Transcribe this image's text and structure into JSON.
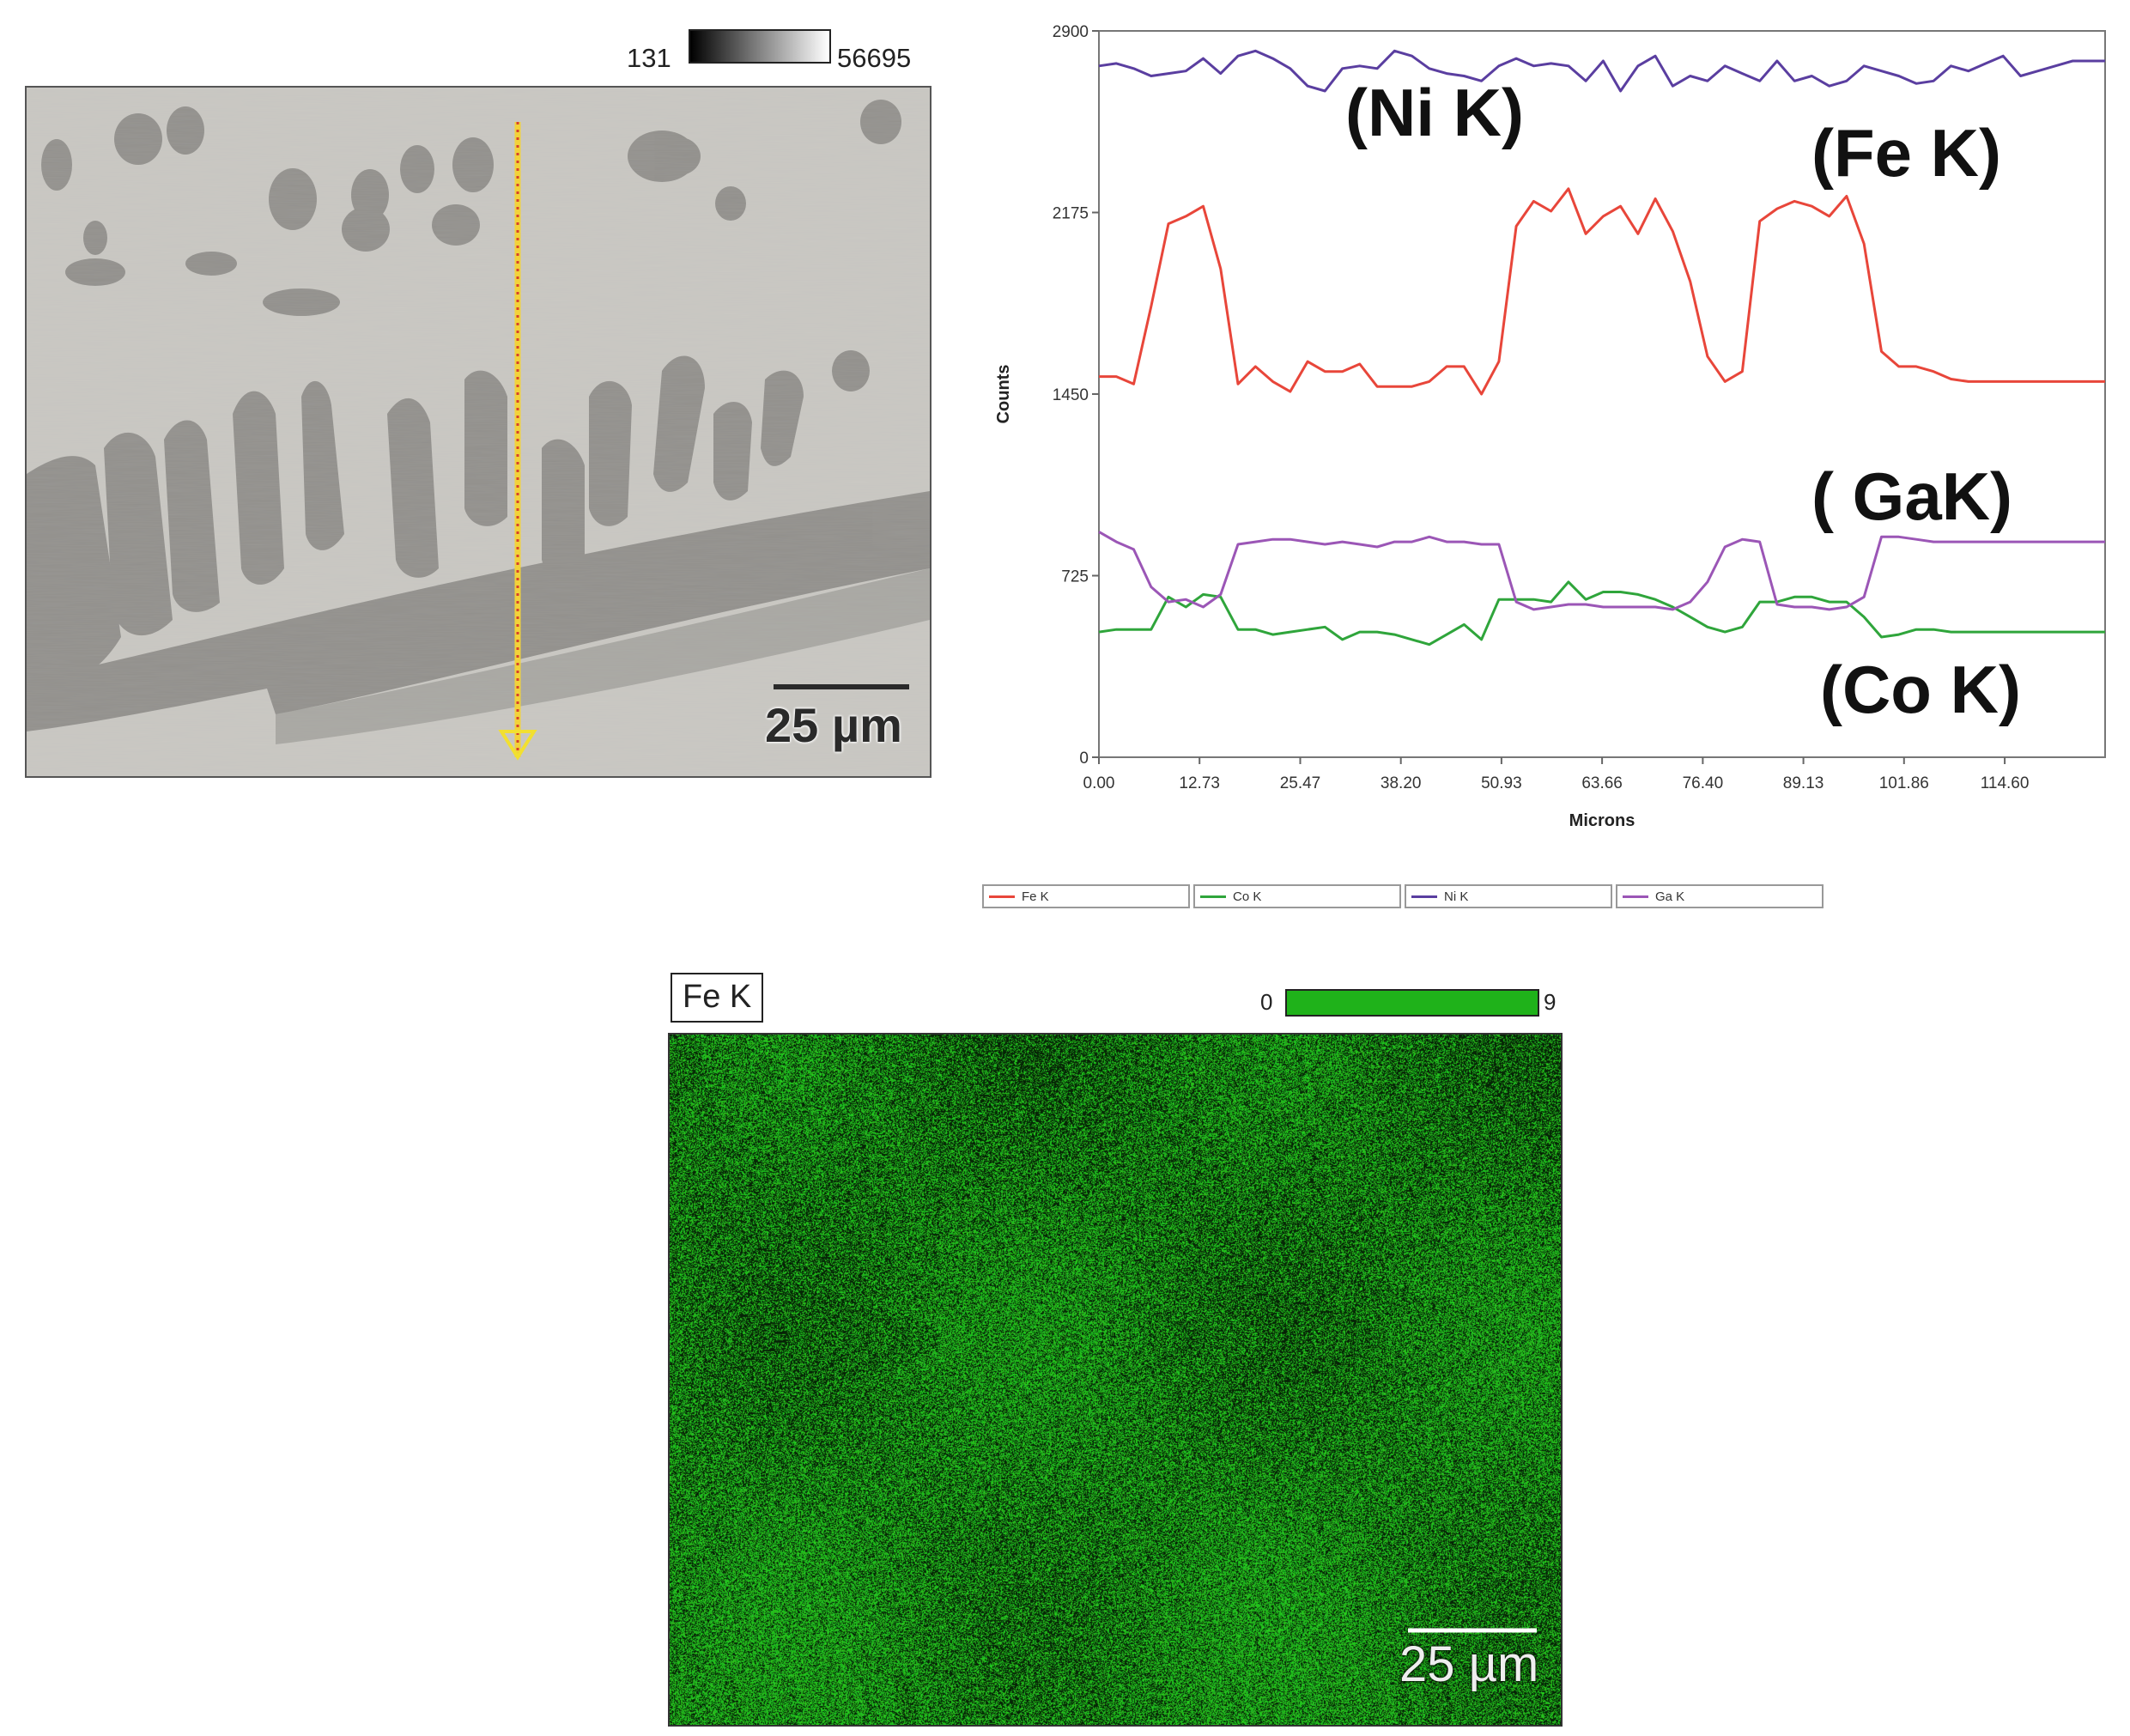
{
  "sem_image": {
    "greyscale_min": "131",
    "greyscale_max": "56695",
    "scale_label": "25 µm"
  },
  "chart_data": {
    "type": "line",
    "title": "",
    "xlabel": "Microns",
    "ylabel": "Counts",
    "xlim": [
      0,
      127.3
    ],
    "ylim": [
      0,
      2900
    ],
    "x_ticks": [
      "0.00",
      "12.73",
      "25.47",
      "38.20",
      "50.93",
      "63.66",
      "76.40",
      "89.13",
      "101.86",
      "114.60"
    ],
    "y_ticks": [
      "0",
      "725",
      "1450",
      "2175",
      "2900"
    ],
    "grid": false,
    "legend_position": "bottom",
    "annotations": [
      "(Ni K)",
      "(Fe K)",
      "( GaK)",
      "(Co K)"
    ],
    "x": [
      0,
      2.2,
      4.4,
      6.6,
      8.8,
      11.0,
      13.2,
      15.4,
      17.6,
      19.8,
      22.0,
      24.2,
      26.4,
      28.6,
      30.8,
      33.0,
      35.2,
      37.4,
      39.6,
      41.8,
      44.0,
      46.2,
      48.4,
      50.6,
      52.8,
      55.0,
      57.2,
      59.4,
      61.6,
      63.8,
      66.0,
      68.2,
      70.4,
      72.6,
      74.8,
      77.0,
      79.2,
      81.4,
      83.6,
      85.8,
      88.0,
      90.2,
      92.4,
      94.6,
      96.8,
      99.0,
      101.2,
      103.4,
      105.6,
      107.8,
      110.0,
      112.2,
      114.4,
      116.6,
      118.8,
      121.0,
      123.2,
      125.4,
      127.3
    ],
    "series": [
      {
        "name": "Fe K",
        "color": "#e8463a",
        "values": [
          1520,
          1520,
          1490,
          1800,
          2130,
          2160,
          2200,
          1950,
          1490,
          1560,
          1500,
          1460,
          1580,
          1540,
          1540,
          1570,
          1480,
          1480,
          1480,
          1500,
          1560,
          1560,
          1450,
          1580,
          2120,
          2220,
          2180,
          2270,
          2090,
          2160,
          2200,
          2090,
          2230,
          2100,
          1900,
          1600,
          1500,
          1540,
          2140,
          2190,
          2220,
          2200,
          2160,
          2240,
          2050,
          1620,
          1560,
          1560,
          1540,
          1510,
          1500,
          1500,
          1500,
          1500,
          1500,
          1500,
          1500,
          1500,
          1500
        ]
      },
      {
        "name": "Co K",
        "color": "#2fa53b",
        "values": [
          500,
          510,
          510,
          510,
          640,
          600,
          650,
          640,
          510,
          510,
          490,
          500,
          510,
          520,
          470,
          500,
          500,
          490,
          470,
          450,
          490,
          530,
          470,
          630,
          630,
          630,
          620,
          700,
          630,
          660,
          660,
          650,
          630,
          600,
          560,
          520,
          500,
          520,
          620,
          620,
          640,
          640,
          620,
          620,
          560,
          480,
          490,
          510,
          510,
          500,
          500,
          500,
          500,
          500,
          500,
          500,
          500,
          500,
          500
        ]
      },
      {
        "name": "Ni K",
        "color": "#5a3ea0",
        "values": [
          2760,
          2770,
          2750,
          2720,
          2730,
          2740,
          2790,
          2730,
          2800,
          2820,
          2790,
          2750,
          2680,
          2660,
          2750,
          2760,
          2750,
          2820,
          2800,
          2750,
          2730,
          2720,
          2700,
          2760,
          2790,
          2760,
          2770,
          2760,
          2700,
          2780,
          2660,
          2760,
          2800,
          2680,
          2720,
          2700,
          2760,
          2730,
          2700,
          2780,
          2700,
          2720,
          2680,
          2700,
          2760,
          2740,
          2720,
          2690,
          2700,
          2760,
          2740,
          2770,
          2800,
          2720,
          2740,
          2760,
          2780,
          2780,
          2780
        ]
      },
      {
        "name": "Ga K",
        "color": "#9b56b6",
        "values": [
          900,
          860,
          830,
          680,
          620,
          630,
          600,
          650,
          850,
          860,
          870,
          870,
          860,
          850,
          860,
          850,
          840,
          860,
          860,
          880,
          860,
          860,
          850,
          850,
          620,
          590,
          600,
          610,
          610,
          600,
          600,
          600,
          600,
          590,
          620,
          700,
          840,
          870,
          860,
          610,
          600,
          600,
          590,
          600,
          640,
          880,
          880,
          870,
          860,
          860,
          860,
          860,
          860,
          860,
          860,
          860,
          860,
          860,
          860
        ]
      }
    ]
  },
  "legend": {
    "items": [
      {
        "label": "Fe K",
        "color": "#e8463a"
      },
      {
        "label": "Co K",
        "color": "#2fa53b"
      },
      {
        "label": "Ni K",
        "color": "#5a3ea0"
      },
      {
        "label": "Ga K",
        "color": "#9b56b6"
      }
    ]
  },
  "map": {
    "title": "Fe K",
    "scale_min": "0",
    "scale_max": "9",
    "scale_label": "25 µm",
    "color": "#1fb21a"
  }
}
